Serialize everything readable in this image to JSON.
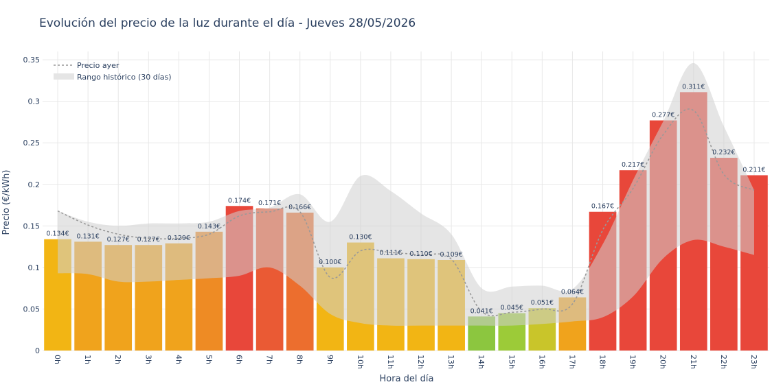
{
  "chart_data": {
    "type": "bar",
    "title": "Evolución del precio de la luz durante el día - Jueves 28/05/2026",
    "xlabel": "Hora del día",
    "ylabel": "Precio (€/kWh)",
    "ylim": [
      0,
      0.36
    ],
    "yticks": [
      0,
      0.05,
      0.1,
      0.15,
      0.2,
      0.25,
      0.3,
      0.35
    ],
    "ytick_labels": [
      "0",
      "0.05",
      "0.1",
      "0.15",
      "0.2",
      "0.25",
      "0.3",
      "0.35"
    ],
    "grid": true,
    "legend_position": "top-left",
    "categories": [
      "0h",
      "1h",
      "2h",
      "3h",
      "4h",
      "5h",
      "6h",
      "7h",
      "8h",
      "9h",
      "10h",
      "11h",
      "12h",
      "13h",
      "14h",
      "15h",
      "16h",
      "17h",
      "18h",
      "19h",
      "20h",
      "21h",
      "22h",
      "23h"
    ],
    "series": [
      {
        "values": [
          0.134,
          0.131,
          0.127,
          0.127,
          0.129,
          0.143,
          0.174,
          0.171,
          0.166,
          0.1,
          0.13,
          0.111,
          0.11,
          0.109,
          0.041,
          0.045,
          0.051,
          0.064,
          0.167,
          0.217,
          0.277,
          0.311,
          0.232,
          0.211
        ],
        "labels": [
          "0.134€",
          "0.131€",
          "0.127€",
          "0.127€",
          "0.129€",
          "0.143€",
          "0.174€",
          "0.171€",
          "0.166€",
          "0.100€",
          "0.130€",
          "0.111€",
          "0.110€",
          "0.109€",
          "0.041€",
          "0.045€",
          "0.051€",
          "0.064€",
          "0.167€",
          "0.217€",
          "0.277€",
          "0.311€",
          "0.232€",
          "0.211€"
        ],
        "colors": [
          "#f2b514",
          "#f0a31c",
          "#f0a31c",
          "#f0a31c",
          "#f0a31c",
          "#ee8b24",
          "#e8473a",
          "#ea5a34",
          "#ec6e2e",
          "#f2b514",
          "#f2b514",
          "#f2b514",
          "#f2b514",
          "#f2b514",
          "#8cc63f",
          "#9ccb38",
          "#c9c52a",
          "#f0a31c",
          "#e8473a",
          "#e8473a",
          "#e8473a",
          "#e8473a",
          "#e8473a",
          "#e8473a"
        ]
      },
      {
        "name": "Precio ayer",
        "values": [
          0.168,
          0.151,
          0.14,
          0.135,
          0.135,
          0.14,
          0.162,
          0.167,
          0.167,
          0.088,
          0.12,
          0.118,
          0.115,
          0.11,
          0.047,
          0.046,
          0.05,
          0.056,
          0.145,
          0.195,
          0.26,
          0.289,
          0.212,
          0.193
        ],
        "color": "#999999"
      },
      {
        "name": "Rango histórico (30 días)",
        "upper": [
          0.168,
          0.155,
          0.15,
          0.153,
          0.153,
          0.155,
          0.168,
          0.172,
          0.188,
          0.155,
          0.21,
          0.192,
          0.165,
          0.14,
          0.075,
          0.077,
          0.078,
          0.074,
          0.128,
          0.205,
          0.276,
          0.346,
          0.27,
          0.193
        ],
        "lower": [
          0.093,
          0.092,
          0.083,
          0.083,
          0.085,
          0.087,
          0.09,
          0.1,
          0.078,
          0.044,
          0.033,
          0.03,
          0.03,
          0.03,
          0.03,
          0.03,
          0.032,
          0.035,
          0.04,
          0.065,
          0.111,
          0.133,
          0.125,
          0.115
        ],
        "color": "#e5e5e5"
      }
    ]
  }
}
